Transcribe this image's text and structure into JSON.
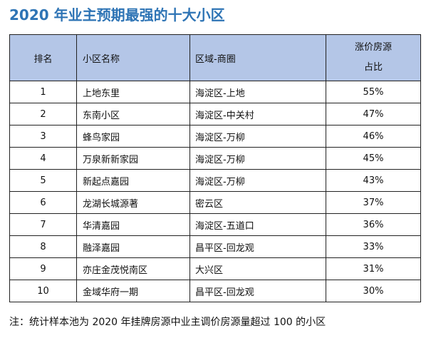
{
  "title": "2020 年业主预期最强的十大小区",
  "table": {
    "headers": {
      "rank": "排名",
      "name": "小区名称",
      "area": "区域-商圈",
      "pct_line1": "涨价房源",
      "pct_line2": "占比"
    },
    "rows": [
      {
        "rank": "1",
        "name": "上地东里",
        "area": "海淀区-上地",
        "pct": "55%"
      },
      {
        "rank": "2",
        "name": "东南小区",
        "area": "海淀区-中关村",
        "pct": "47%"
      },
      {
        "rank": "3",
        "name": "蜂鸟家园",
        "area": "海淀区-万柳",
        "pct": "46%"
      },
      {
        "rank": "4",
        "name": "万泉新新家园",
        "area": "海淀区-万柳",
        "pct": "45%"
      },
      {
        "rank": "5",
        "name": "新起点嘉园",
        "area": "海淀区-万柳",
        "pct": "43%"
      },
      {
        "rank": "6",
        "name": "龙湖长城源著",
        "area": "密云区",
        "pct": "37%"
      },
      {
        "rank": "7",
        "name": "华清嘉园",
        "area": "海淀区-五道口",
        "pct": "36%"
      },
      {
        "rank": "8",
        "name": "融泽嘉园",
        "area": "昌平区-回龙观",
        "pct": "33%"
      },
      {
        "rank": "9",
        "name": "亦庄金茂悦南区",
        "area": "大兴区",
        "pct": "31%"
      },
      {
        "rank": "10",
        "name": "金域华府一期",
        "area": "昌平区-回龙观",
        "pct": "30%"
      }
    ]
  },
  "note": "注：统计样本池为 2020 年挂牌房源中业主调价房源量超过 100 的小区",
  "colors": {
    "title": "#2e74b5",
    "header_bg": "#b4c6e7",
    "border": "#222222"
  }
}
